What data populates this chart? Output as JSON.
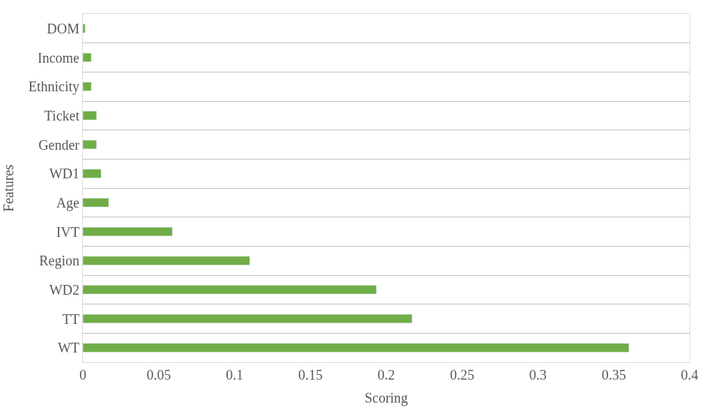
{
  "chart_data": {
    "type": "bar",
    "orientation": "horizontal",
    "xlabel": "Scoring",
    "ylabel": "Features",
    "categories": [
      "DOM",
      "Income",
      "Ethnicity",
      "Ticket",
      "Gender",
      "WD1",
      "Age",
      "IVT",
      "Region",
      "WD2",
      "TT",
      "WT"
    ],
    "values": [
      0.0015,
      0.0055,
      0.0055,
      0.009,
      0.009,
      0.012,
      0.017,
      0.059,
      0.11,
      0.1935,
      0.217,
      0.36
    ],
    "color": "#70ad47",
    "xlim": [
      0,
      0.4
    ],
    "xticks": [
      0,
      0.05,
      0.1,
      0.15,
      0.2,
      0.25,
      0.3,
      0.35,
      0.4
    ],
    "grid": "y"
  }
}
